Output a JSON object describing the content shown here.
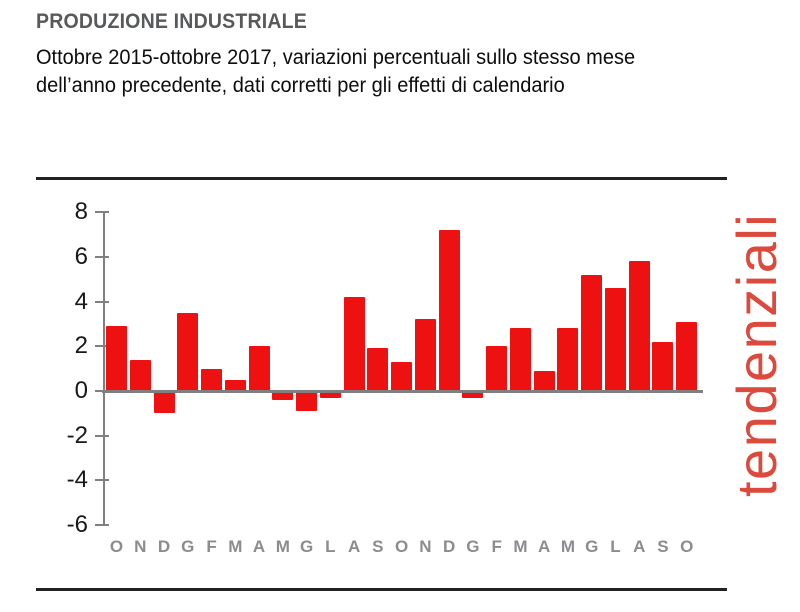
{
  "header": {
    "title": "PRODUZIONE INDUSTRIALE",
    "subtitle_line1": "Ottobre 2015-ottobre 2017, variazioni percentuali sullo stesso mese",
    "subtitle_line2": "dell’anno precedente, dati corretti per gli effetti di calendario"
  },
  "side_label": "tendenziali",
  "colors": {
    "bar_red": "#ee1111",
    "side_label_red": "#dc4a3d",
    "title_gray": "#58595b",
    "axis_gray": "#808080",
    "x_label_gray": "#8a8c8f",
    "rule_dark": "#222222"
  },
  "chart_data": {
    "type": "bar",
    "title": "PRODUZIONE INDUSTRIALE",
    "subtitle": "Ottobre 2015-ottobre 2017, variazioni percentuali sullo stesso mese dell’anno precedente, dati corretti per gli effetti di calendario",
    "categories": [
      "O",
      "N",
      "D",
      "G",
      "F",
      "M",
      "A",
      "M",
      "G",
      "L",
      "A",
      "S",
      "O",
      "N",
      "D",
      "G",
      "F",
      "M",
      "A",
      "M",
      "G",
      "L",
      "A",
      "S",
      "O"
    ],
    "period_start": "Ottobre 2015",
    "period_end": "ottobre 2017",
    "values": [
      2.9,
      1.4,
      -1.0,
      3.5,
      1.0,
      0.5,
      2.0,
      -0.4,
      -0.9,
      -0.3,
      4.2,
      1.9,
      1.3,
      3.2,
      7.2,
      -0.3,
      2.0,
      2.8,
      0.9,
      2.8,
      5.2,
      4.6,
      5.8,
      2.2,
      3.1
    ],
    "xlabel": "",
    "ylabel": "",
    "ylim": [
      -6,
      8
    ],
    "yticks": [
      8,
      6,
      4,
      2,
      0,
      -2,
      -4,
      -6
    ],
    "grid": false,
    "legend": null,
    "bar_color": "#ee1111",
    "unit": "%"
  }
}
